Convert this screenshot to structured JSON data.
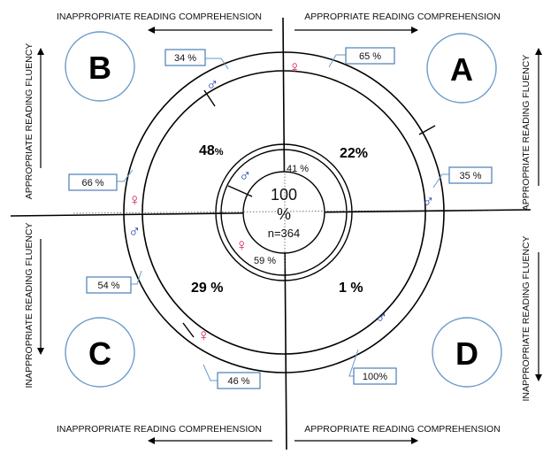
{
  "axis_labels": {
    "top_left": "INAPPROPRIATE READING COMPREHENSION",
    "top_right": "APPROPRIATE READING COMPREHENSION",
    "bottom_left": "INAPPROPRIATE READING COMPREHENSION",
    "bottom_right": "APPROPRIATE READING COMPREHENSION",
    "left_top": "APPROPRIATE READING FLUENCY",
    "left_bottom": "INAPPROPRIATE READING FLUENCY",
    "right_top": "APPROPRIATE READING FLUENCY",
    "right_bottom": "INAPPROPRIATE READING FLUENCY"
  },
  "quadrants": {
    "A": {
      "letter": "A",
      "percent": "22%",
      "female_pct": "65 %",
      "male_pct": "35 %"
    },
    "B": {
      "letter": "B",
      "percent": "48",
      "percent_sign": "%",
      "male_pct": "34 %",
      "female_pct": "66 %"
    },
    "C": {
      "letter": "C",
      "percent": "29 %",
      "male_pct": "54 %",
      "female_pct": "46 %"
    },
    "D": {
      "letter": "D",
      "percent": "1 %",
      "male_pct": "100%"
    }
  },
  "center": {
    "value": "100",
    "unit": "%",
    "n": "n=364",
    "male_pct": "41 %",
    "female_pct": "59 %"
  },
  "symbols": {
    "male": "♂",
    "female": "♀"
  },
  "colors": {
    "male": "#1a3fb0",
    "female": "#d0206b",
    "circle_blue": "#6a9ac8",
    "box_blue": "#4a7fb5"
  }
}
